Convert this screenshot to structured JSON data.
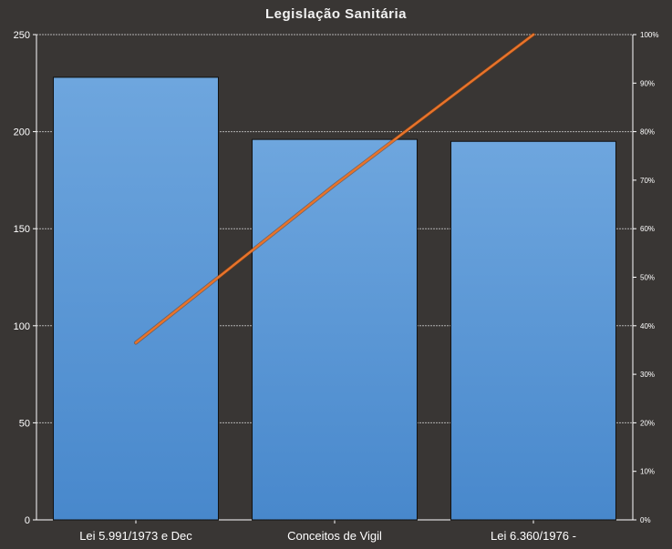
{
  "chart_data": {
    "type": "bar",
    "title": "Legislação Sanitária",
    "categories": [
      "Lei 5.991/1973  e Dec",
      "Conceitos de Vigil",
      "Lei 6.360/1976  -"
    ],
    "series": [
      {
        "type": "bar",
        "values": [
          228,
          196,
          195
        ]
      },
      {
        "type": "line",
        "axis": "right",
        "values": [
          0.365,
          0.69,
          1.0
        ]
      }
    ],
    "ylim": [
      0,
      250
    ],
    "yticks": [
      "0",
      "50",
      "100",
      "150",
      "200",
      "250"
    ],
    "y2lim": [
      0,
      1
    ],
    "y2ticks": [
      "0%",
      "10%",
      "20%",
      "30%",
      "40%",
      "50%",
      "60%",
      "70%",
      "80%",
      "90%",
      "100%"
    ],
    "grid": true,
    "colors": {
      "background": "#393634",
      "bar_top": "#6ea6de",
      "bar_bottom": "#4888cc",
      "bar_edge": "#111111",
      "line": "#e8732a",
      "grid": "#cfcfcf",
      "text": "#ffffff"
    }
  }
}
